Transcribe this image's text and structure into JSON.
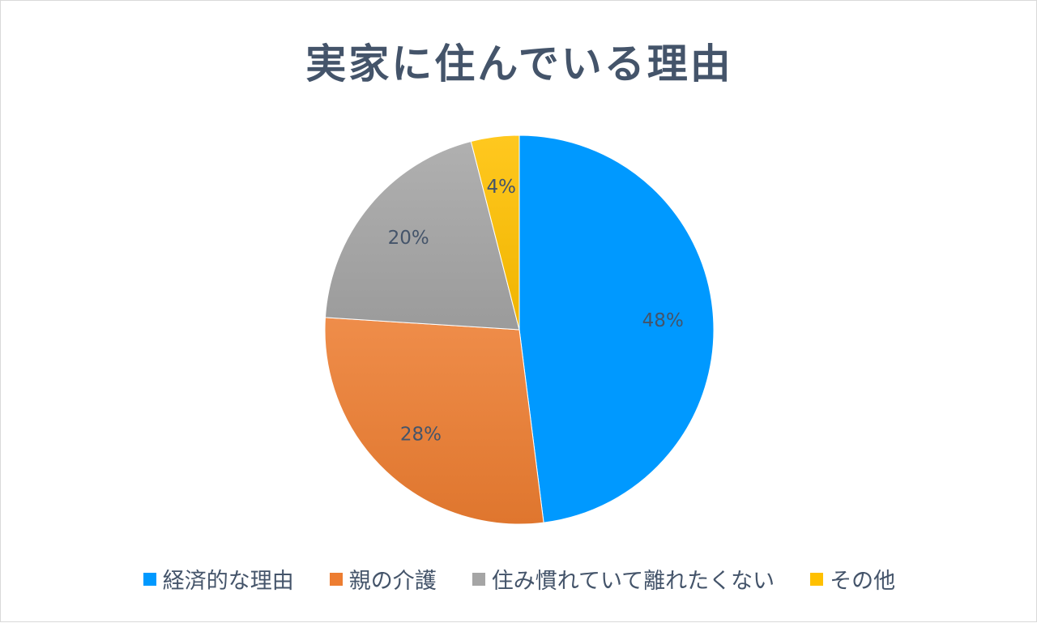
{
  "chart_data": {
    "type": "pie",
    "title": "実家に住んでいる理由",
    "categories": [
      "経済的な理由",
      "親の介護",
      "住み慣れていて離れたくない",
      "その他"
    ],
    "values": [
      48,
      28,
      20,
      4
    ],
    "data_labels": [
      "48%",
      "28%",
      "20%",
      "4%"
    ],
    "colors": [
      "#0099ff",
      "#ed7d31",
      "#a5a5a5",
      "#ffc000"
    ],
    "legend_position": "bottom",
    "start_angle": "12 o'clock",
    "direction": "clockwise"
  }
}
